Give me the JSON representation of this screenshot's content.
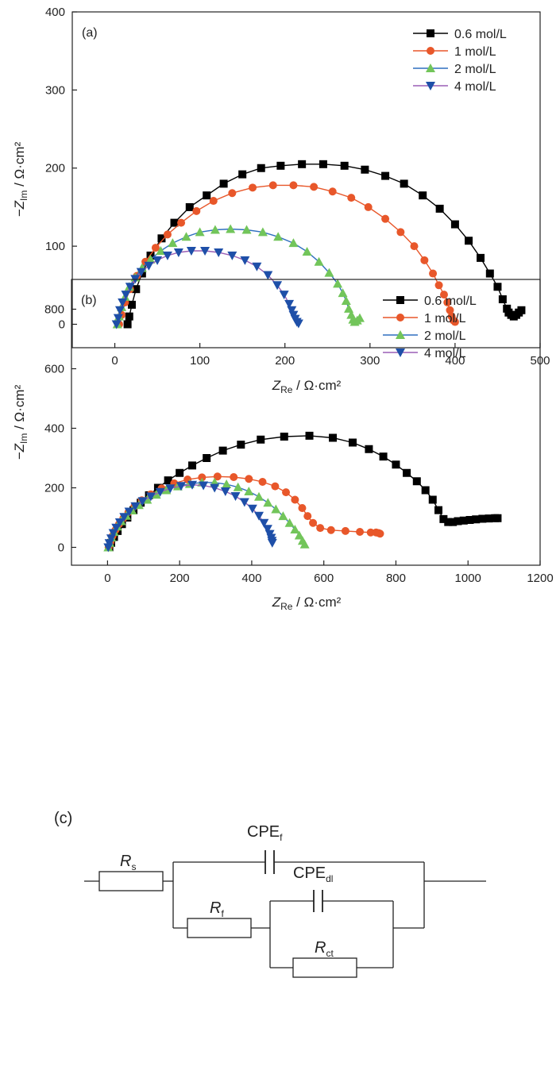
{
  "chart_data": [
    {
      "type": "scatter",
      "panel_label": "(a)",
      "xlabel": {
        "main": "Z",
        "sub": "Re",
        "unit": " / Ω·cm²"
      },
      "ylabel": {
        "main": "−Z",
        "sub": "Im",
        "unit": " / Ω·cm²"
      },
      "xlim": [
        -50,
        500
      ],
      "ylim": [
        -30,
        400
      ],
      "xticks": [
        "0",
        "100",
        "200",
        "300",
        "400",
        "500"
      ],
      "yticks": [
        "0",
        "100",
        "200",
        "300",
        "400"
      ],
      "legend_position": "top-right",
      "grid": false,
      "series": [
        {
          "name": "0.6 mol/L",
          "color": "#000000",
          "marker": "square",
          "x": [
            15,
            17,
            20,
            25,
            32,
            42,
            55,
            70,
            88,
            108,
            128,
            150,
            172,
            195,
            220,
            245,
            270,
            294,
            318,
            340,
            362,
            382,
            400,
            416,
            430,
            441,
            450,
            456,
            461,
            463,
            466,
            469,
            472,
            475,
            478
          ],
          "y": [
            0,
            10,
            25,
            45,
            65,
            88,
            110,
            130,
            150,
            165,
            180,
            192,
            200,
            203,
            205,
            205,
            203,
            198,
            190,
            180,
            165,
            148,
            128,
            107,
            85,
            65,
            48,
            32,
            20,
            15,
            12,
            10,
            12,
            15,
            18
          ]
        },
        {
          "name": "1 mol/L",
          "color": "#e8572a",
          "marker": "circle",
          "x": [
            5,
            8,
            12,
            18,
            26,
            36,
            48,
            62,
            78,
            96,
            116,
            138,
            162,
            186,
            210,
            234,
            256,
            278,
            298,
            318,
            336,
            352,
            364,
            374,
            381,
            387,
            391,
            394,
            396,
            398,
            400
          ],
          "y": [
            0,
            12,
            28,
            45,
            62,
            80,
            98,
            115,
            130,
            145,
            158,
            168,
            175,
            178,
            178,
            176,
            170,
            162,
            150,
            135,
            118,
            100,
            82,
            65,
            50,
            38,
            28,
            18,
            10,
            5,
            3
          ]
        },
        {
          "name": "2 mol/L",
          "color": "#2f6fbf",
          "marker": "triangle-up",
          "fill": "#72c55a",
          "x": [
            3,
            5,
            8,
            12,
            17,
            24,
            32,
            42,
            54,
            68,
            84,
            100,
            118,
            136,
            155,
            174,
            192,
            210,
            226,
            240,
            252,
            262,
            268,
            272,
            275,
            278,
            280,
            282,
            285,
            288
          ],
          "y": [
            0,
            10,
            22,
            35,
            48,
            60,
            72,
            83,
            94,
            104,
            112,
            118,
            121,
            122,
            121,
            118,
            112,
            104,
            93,
            80,
            66,
            52,
            40,
            30,
            20,
            12,
            6,
            3,
            5,
            8
          ]
        },
        {
          "name": "4 mol/L",
          "color": "#9a5fb5",
          "marker": "triangle-down",
          "fill": "#1e4fa8",
          "x": [
            2,
            4,
            6,
            9,
            13,
            18,
            24,
            31,
            40,
            50,
            62,
            75,
            90,
            106,
            122,
            138,
            153,
            167,
            180,
            191,
            199,
            205,
            208,
            210,
            212,
            214,
            216
          ],
          "y": [
            0,
            8,
            18,
            28,
            38,
            48,
            58,
            67,
            75,
            82,
            88,
            92,
            94,
            94,
            92,
            88,
            82,
            74,
            63,
            50,
            38,
            26,
            18,
            12,
            7,
            3,
            1
          ]
        }
      ]
    },
    {
      "type": "scatter",
      "panel_label": "(b)",
      "xlabel": {
        "main": "Z",
        "sub": "Re",
        "unit": " / Ω·cm²"
      },
      "ylabel": {
        "main": "−Z",
        "sub": "Im",
        "unit": " / Ω·cm²"
      },
      "xlim": [
        -100,
        1200
      ],
      "ylim": [
        -60,
        900
      ],
      "xticks": [
        "0",
        "200",
        "400",
        "600",
        "800",
        "1000",
        "1200"
      ],
      "yticks": [
        "0",
        "200",
        "400",
        "600",
        "800"
      ],
      "legend_position": "top-right",
      "grid": false,
      "series": [
        {
          "name": "0.6 mol/L",
          "color": "#000000",
          "marker": "square",
          "x": [
            5,
            10,
            18,
            28,
            40,
            55,
            72,
            92,
            115,
            140,
            168,
            200,
            235,
            275,
            320,
            370,
            425,
            490,
            560,
            625,
            680,
            725,
            765,
            800,
            830,
            858,
            882,
            902,
            918,
            932,
            945,
            958,
            972,
            988,
            1005,
            1022,
            1040,
            1058,
            1075,
            1082
          ],
          "y": [
            0,
            15,
            35,
            55,
            78,
            100,
            125,
            150,
            175,
            200,
            225,
            250,
            275,
            300,
            325,
            345,
            362,
            372,
            375,
            368,
            352,
            330,
            305,
            278,
            250,
            222,
            192,
            160,
            125,
            95,
            85,
            85,
            88,
            90,
            92,
            94,
            96,
            97,
            98,
            98
          ]
        },
        {
          "name": "1 mol/L",
          "color": "#e8572a",
          "marker": "circle",
          "x": [
            3,
            8,
            14,
            22,
            32,
            44,
            58,
            75,
            95,
            120,
            150,
            185,
            222,
            262,
            305,
            350,
            392,
            430,
            465,
            495,
            520,
            540,
            555,
            570,
            590,
            620,
            660,
            700,
            730,
            745,
            752,
            756
          ],
          "y": [
            0,
            18,
            38,
            58,
            78,
            98,
            118,
            138,
            158,
            178,
            198,
            215,
            228,
            235,
            238,
            236,
            230,
            220,
            205,
            185,
            160,
            132,
            105,
            82,
            65,
            58,
            55,
            52,
            50,
            50,
            48,
            46
          ]
        },
        {
          "name": "2 mol/L",
          "color": "#2f6fbf",
          "marker": "triangle-up",
          "fill": "#72c55a",
          "x": [
            2,
            6,
            11,
            18,
            27,
            38,
            52,
            68,
            87,
            110,
            135,
            163,
            195,
            228,
            262,
            297,
            330,
            362,
            392,
            420,
            445,
            467,
            487,
            505,
            520,
            532,
            541,
            547
          ],
          "y": [
            0,
            15,
            33,
            52,
            70,
            88,
            106,
            124,
            142,
            160,
            177,
            192,
            205,
            213,
            218,
            218,
            212,
            202,
            188,
            170,
            150,
            128,
            105,
            82,
            60,
            40,
            22,
            10
          ]
        },
        {
          "name": "4 mol/L",
          "color": "#9a5fb5",
          "marker": "triangle-down",
          "fill": "#1e4fa8",
          "x": [
            2,
            5,
            10,
            16,
            24,
            34,
            46,
            60,
            77,
            97,
            120,
            146,
            174,
            204,
            235,
            266,
            297,
            327,
            355,
            380,
            402,
            420,
            434,
            444,
            450,
            454,
            456,
            457
          ],
          "y": [
            0,
            14,
            30,
            48,
            66,
            84,
            102,
            120,
            138,
            155,
            171,
            186,
            198,
            206,
            210,
            208,
            200,
            188,
            172,
            152,
            130,
            106,
            82,
            62,
            45,
            32,
            22,
            15
          ]
        }
      ]
    }
  ],
  "circuit": {
    "panel_label": "(c)",
    "labels": {
      "rs": {
        "main": "R",
        "sub": "s"
      },
      "cpef": {
        "main": "CPE",
        "sub": "f"
      },
      "rf": {
        "main": "R",
        "sub": "f"
      },
      "cpedl": {
        "main": "CPE",
        "sub": "dl"
      },
      "rct": {
        "main": "R",
        "sub": "ct"
      }
    }
  }
}
